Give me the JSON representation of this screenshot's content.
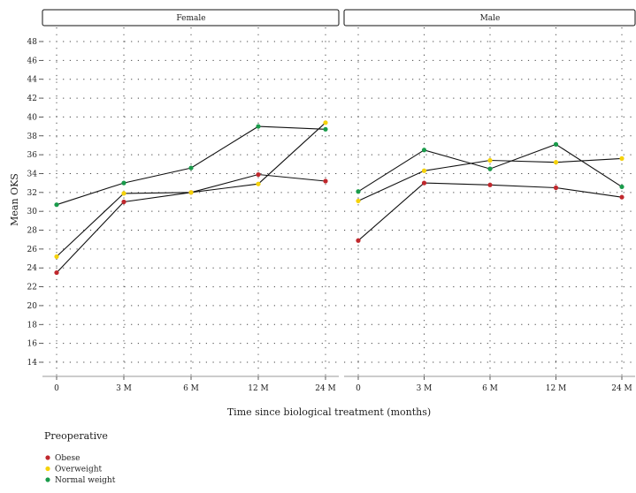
{
  "chart_data": {
    "type": "line",
    "xlabel": "Time since biological treatment (months)",
    "ylabel": "Mean OKS",
    "x_categories": [
      "0",
      "3 M",
      "6 M",
      "12 M",
      "24 M"
    ],
    "y_ticks": [
      14,
      16,
      18,
      20,
      22,
      24,
      26,
      28,
      30,
      32,
      34,
      36,
      38,
      40,
      42,
      44,
      46,
      48
    ],
    "ylim": [
      12.5,
      49.5
    ],
    "grid": "dotted",
    "legend": {
      "title": "Preoperative",
      "placement": "bottom-left",
      "entries": [
        "Obese",
        "Overweight",
        "Normal weight"
      ]
    },
    "series_colors": {
      "Obese": "#c0282d",
      "Overweight": "#f5d20a",
      "Normal weight": "#1a9b4b"
    },
    "line_color": "#111111",
    "panels": [
      {
        "title": "Female",
        "series": [
          {
            "name": "Obese",
            "values": [
              23.5,
              31.0,
              32.0,
              33.9,
              33.2
            ]
          },
          {
            "name": "Overweight",
            "values": [
              25.2,
              31.9,
              32.0,
              32.9,
              39.4
            ]
          },
          {
            "name": "Normal weight",
            "values": [
              30.7,
              33.0,
              34.6,
              39.0,
              38.7
            ]
          }
        ]
      },
      {
        "title": "Male",
        "series": [
          {
            "name": "Obese",
            "values": [
              26.9,
              33.0,
              32.8,
              32.5,
              31.5
            ]
          },
          {
            "name": "Overweight",
            "values": [
              31.1,
              34.3,
              35.4,
              35.2,
              35.6
            ]
          },
          {
            "name": "Normal weight",
            "values": [
              32.1,
              36.5,
              34.5,
              37.1,
              32.6
            ]
          }
        ]
      }
    ]
  }
}
